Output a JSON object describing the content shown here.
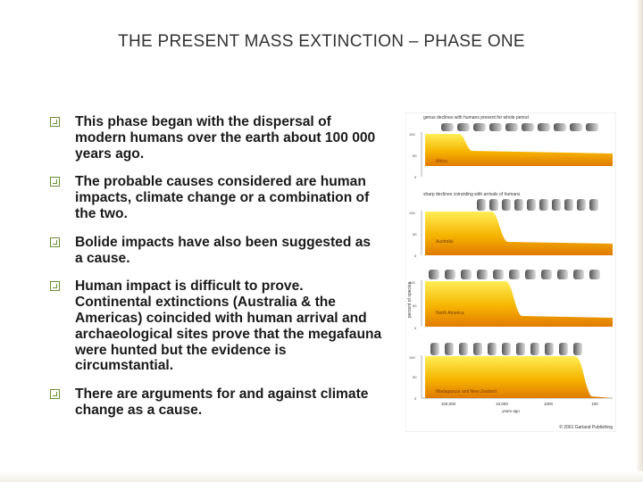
{
  "slide": {
    "title": "THE PRESENT MASS EXTINCTION – PHASE ONE",
    "bullets": [
      "This phase began with the dispersal of modern humans over the earth about 100 000 years ago.",
      "The probable causes considered are human impacts, climate change or a combination of the two.",
      "Bolide impacts have also been suggested as a cause.",
      "Human impact is difficult to prove. Continental extinctions (Australia & the Americas) coincided with human arrival and archaeological sites prove that the megafauna were hunted but the evidence is circumstantial.",
      "There are arguments for and against climate change as a cause."
    ]
  },
  "figure": {
    "panel_captions": [
      "genus declines with humans present for whole period",
      "sharp declines coinciding with arrivals of humans",
      "",
      ""
    ],
    "regions": [
      "Africa",
      "Australia",
      "North America",
      "Madagascar and New Zealand"
    ],
    "ylabel": "percent of species",
    "y_ticks": [
      "100",
      "50",
      "0"
    ],
    "x_ticks": [
      "100,000",
      "10,000",
      "1000",
      "100"
    ],
    "xlabel": "years ago",
    "copyright": "© 2001 Garland Publishing",
    "colors": {
      "gradient_dark": "#e8a000",
      "gradient_light": "#fff066",
      "animals": "#555555"
    }
  }
}
